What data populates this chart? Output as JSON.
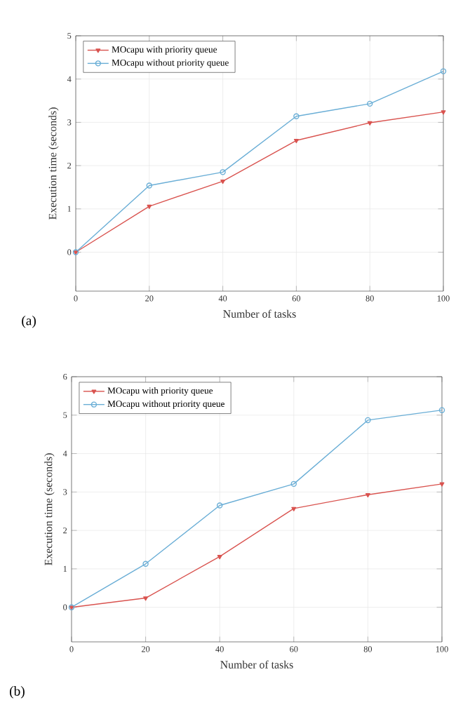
{
  "chart_data": [
    {
      "type": "line",
      "xlabel": "Number of tasks",
      "ylabel": "Execution time (seconds)",
      "annotations": [
        "(a)"
      ],
      "x": [
        0,
        20,
        40,
        60,
        80,
        100
      ],
      "series": [
        {
          "name": "MOcapu with priority queue",
          "color": "#d9534f",
          "marker": "triangle",
          "values": [
            0,
            1.06,
            1.64,
            2.58,
            2.99,
            3.24
          ]
        },
        {
          "name": "MOcapu without priority queue",
          "color": "#6aaed6",
          "marker": "circle",
          "values": [
            0,
            1.54,
            1.85,
            3.14,
            3.43,
            4.18
          ]
        }
      ],
      "xlim": [
        0,
        100
      ],
      "ylim": [
        -0.9,
        5
      ],
      "xticks": [
        0,
        20,
        40,
        60,
        80,
        100
      ],
      "yticks": [
        0,
        1,
        2,
        3,
        4,
        5
      ],
      "grid": true,
      "legend": "top left"
    },
    {
      "type": "line",
      "xlabel": "Number of tasks",
      "ylabel": "Execution time (seconds)",
      "annotations": [
        "(b)"
      ],
      "x": [
        0,
        20,
        40,
        60,
        80,
        100
      ],
      "series": [
        {
          "name": "MOcapu with priority queue",
          "color": "#d9534f",
          "marker": "triangle",
          "values": [
            0,
            0.24,
            1.32,
            2.57,
            2.93,
            3.21
          ]
        },
        {
          "name": "MOcapu without priority queue",
          "color": "#6aaed6",
          "marker": "circle",
          "values": [
            0,
            1.13,
            2.65,
            3.21,
            4.87,
            5.13
          ]
        }
      ],
      "xlim": [
        0,
        100
      ],
      "ylim": [
        -0.9,
        6
      ],
      "xticks": [
        0,
        20,
        40,
        60,
        80,
        100
      ],
      "yticks": [
        0,
        1,
        2,
        3,
        4,
        5,
        6
      ],
      "grid": true,
      "legend": "top left"
    }
  ]
}
